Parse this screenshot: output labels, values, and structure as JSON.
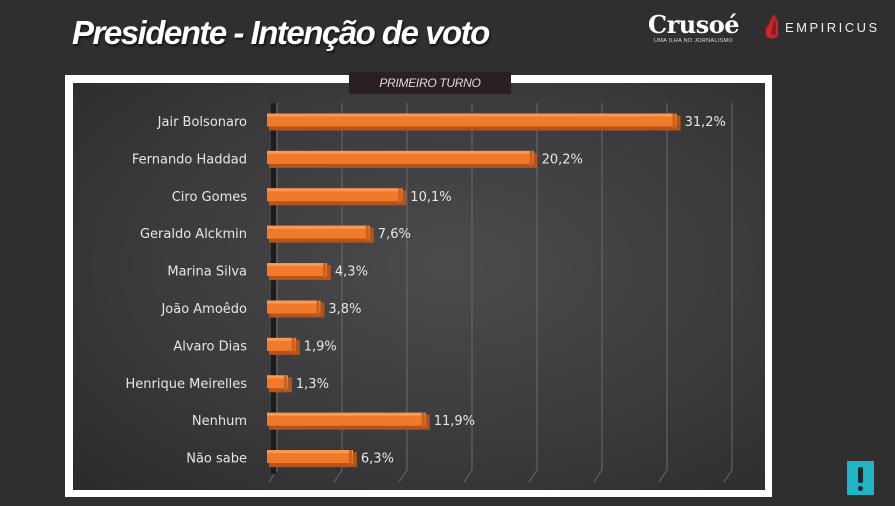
{
  "header": {
    "title": "Presidente - Intenção de voto",
    "logo_crusoe": "Crusoé",
    "logo_crusoe_tagline": "UMA ILHA NO JORNALISMO",
    "logo_empiricus": "EMPIRICUS"
  },
  "colors": {
    "bar": "#f07a2a",
    "bar_dark": "#b4531a",
    "background": "#2f2f2f",
    "alert": "#1fb5c4",
    "empiricus_red": "#c8262b"
  },
  "alert_icon": "exclamation-icon",
  "chart_data": {
    "type": "bar",
    "orientation": "horizontal",
    "subtitle": "PRIMEIRO TURNO",
    "title": "Presidente - Intenção de voto",
    "categories": [
      "Jair Bolsonaro",
      "Fernando Haddad",
      "Ciro Gomes",
      "Geraldo Alckmin",
      "Marina Silva",
      "João Amoêdo",
      "Alvaro Dias",
      "Henrique Meirelles",
      "Nenhum",
      "Não sabe"
    ],
    "values": [
      31.2,
      20.2,
      10.1,
      7.6,
      4.3,
      3.8,
      1.9,
      1.3,
      11.9,
      6.3
    ],
    "value_labels": [
      "31,2%",
      "20,2%",
      "10,1%",
      "7,6%",
      "4,3%",
      "3,8%",
      "1,9%",
      "1,3%",
      "11,9%",
      "6,3%"
    ],
    "unit": "%",
    "xlim": [
      0,
      35
    ],
    "grid_step": 5,
    "grid": true,
    "legend": "none"
  }
}
